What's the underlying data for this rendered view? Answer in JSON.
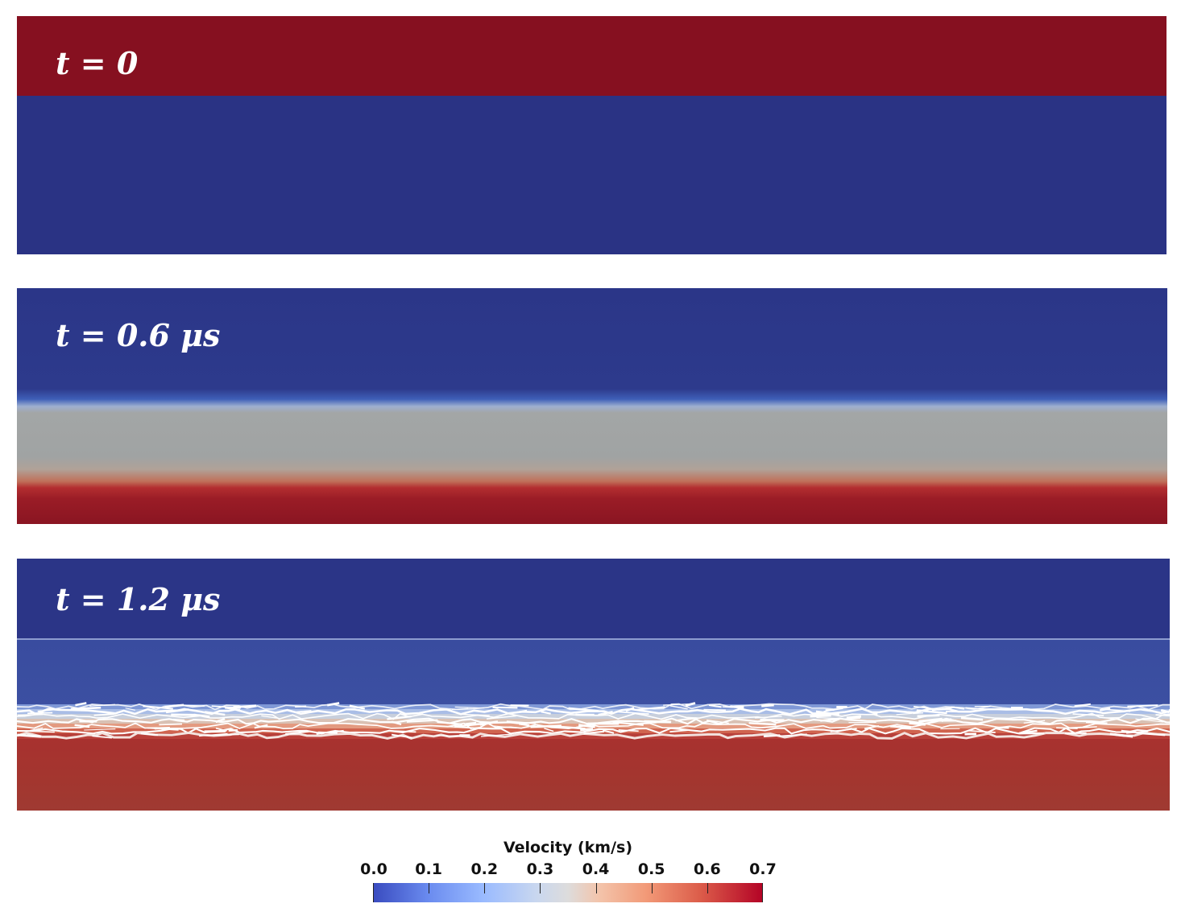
{
  "panels": [
    {
      "label": "t = 0"
    },
    {
      "label": "t = 0.6 μs"
    },
    {
      "label": "t = 1.2 μs"
    }
  ],
  "colorbar": {
    "title": "Velocity (km/s)",
    "ticks": [
      "0.0",
      "0.1",
      "0.2",
      "0.3",
      "0.4",
      "0.5",
      "0.6",
      "0.7"
    ],
    "range": [
      0.0,
      0.7
    ],
    "colormap": "coolwarm",
    "colors": {
      "low": "#3a4cc0",
      "mid": "#dddcdc",
      "high": "#b40426"
    }
  }
}
